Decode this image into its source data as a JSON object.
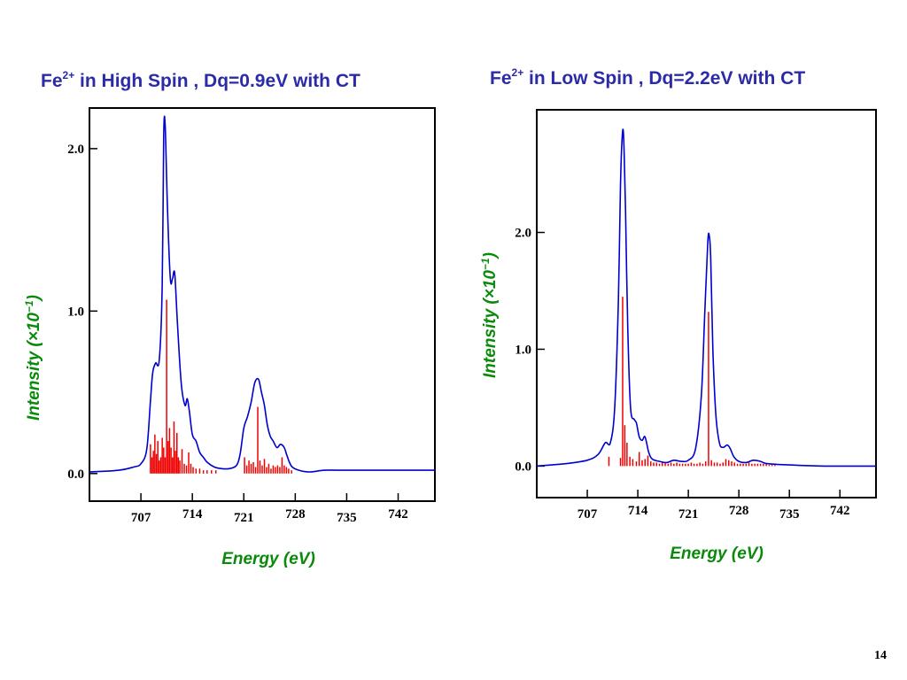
{
  "slide_number": "14",
  "colors": {
    "title": "#2b2ba8",
    "axis_label": "#0a8a0a",
    "envelope": "#0000d0",
    "sticks": "#ee0000",
    "frame": "#000000"
  },
  "chart_data": [
    {
      "type": "line",
      "title_prefix": "Fe",
      "title_sup": "2+",
      "title_suffix": " in High Spin , Dq=0.9eV with CT",
      "xlabel": "Energy  (eV)",
      "ylabel_main": "Intensity  (",
      "ylabel_unit": "×10",
      "ylabel_exp": "−1",
      "ylabel_close": ")",
      "x_ticks": [
        707,
        714,
        721,
        728,
        735,
        742
      ],
      "x_tick_labels": [
        "707",
        "714",
        "721",
        "728",
        "735",
        "742"
      ],
      "y_ticks": [
        0.0,
        1.0,
        2.0
      ],
      "y_tick_labels": [
        "0.0",
        "1.0",
        "2.0"
      ],
      "xlim": [
        700,
        747
      ],
      "ylim": [
        -0.17,
        2.25
      ],
      "grid": false,
      "series": [
        {
          "kind": "envelope",
          "x": [
            700,
            704,
            706,
            707,
            707.8,
            708.3,
            708.6,
            709,
            709.5,
            709.9,
            710.1,
            710.3,
            710.6,
            711,
            711.3,
            711.6,
            712,
            712.5,
            713,
            713.3,
            713.6,
            714,
            714.5,
            715,
            715.5,
            716,
            717,
            718,
            719,
            720,
            720.5,
            721,
            721.5,
            722,
            722.5,
            723,
            723.4,
            723.8,
            724.2,
            724.6,
            725,
            725.5,
            726,
            726.5,
            726.8,
            727.2,
            727.6,
            728.5,
            730,
            732,
            735,
            740,
            747
          ],
          "y": [
            0.01,
            0.02,
            0.04,
            0.06,
            0.15,
            0.45,
            0.62,
            0.68,
            0.7,
            1.15,
            2.08,
            2.14,
            1.65,
            1.2,
            1.2,
            1.23,
            0.9,
            0.55,
            0.42,
            0.46,
            0.38,
            0.24,
            0.2,
            0.13,
            0.1,
            0.07,
            0.04,
            0.03,
            0.03,
            0.05,
            0.12,
            0.28,
            0.35,
            0.44,
            0.56,
            0.58,
            0.5,
            0.42,
            0.3,
            0.23,
            0.2,
            0.16,
            0.18,
            0.16,
            0.12,
            0.07,
            0.04,
            0.02,
            0.01,
            0.02,
            0.02,
            0.02,
            0.02
          ]
        },
        {
          "kind": "sticks",
          "x": [
            708.3,
            708.5,
            708.7,
            708.9,
            709.1,
            709.3,
            709.5,
            709.7,
            709.9,
            710.1,
            710.3,
            710.5,
            710.7,
            710.9,
            711.1,
            711.3,
            711.5,
            711.7,
            711.9,
            712.1,
            712.3,
            712.6,
            712.9,
            713.2,
            713.5,
            713.8,
            714.1,
            714.5,
            715,
            715.5,
            716,
            716.6,
            717.2,
            721.1,
            721.4,
            721.7,
            722,
            722.3,
            722.6,
            722.9,
            723.2,
            723.5,
            723.8,
            724.1,
            724.4,
            724.7,
            725,
            725.3,
            725.6,
            725.9,
            726.2,
            726.5,
            726.8,
            727.1,
            727.5
          ],
          "y": [
            0.18,
            0.1,
            0.14,
            0.24,
            0.12,
            0.2,
            0.08,
            0.1,
            0.22,
            0.16,
            0.1,
            1.07,
            0.2,
            0.28,
            0.16,
            0.1,
            0.32,
            0.14,
            0.25,
            0.1,
            0.08,
            0.15,
            0.06,
            0.05,
            0.13,
            0.06,
            0.04,
            0.03,
            0.03,
            0.02,
            0.02,
            0.02,
            0.02,
            0.1,
            0.05,
            0.08,
            0.06,
            0.07,
            0.04,
            0.41,
            0.08,
            0.05,
            0.09,
            0.04,
            0.06,
            0.03,
            0.05,
            0.04,
            0.05,
            0.04,
            0.1,
            0.05,
            0.04,
            0.03,
            0.02
          ]
        }
      ]
    },
    {
      "type": "line",
      "title_prefix": "Fe",
      "title_sup": "2+",
      "title_suffix": " in Low Spin , Dq=2.2eV with CT",
      "xlabel": "Energy  (eV)",
      "ylabel_main": "Intensity  (",
      "ylabel_unit": "×10",
      "ylabel_exp": "−1",
      "ylabel_close": ")",
      "x_ticks": [
        707,
        714,
        721,
        728,
        735,
        742
      ],
      "x_tick_labels": [
        "707",
        "714",
        "721",
        "728",
        "735",
        "742"
      ],
      "y_ticks": [
        0.0,
        1.0,
        2.0
      ],
      "y_tick_labels": [
        "0.0",
        "1.0",
        "2.0"
      ],
      "xlim": [
        700,
        747
      ],
      "ylim": [
        -0.27,
        3.05
      ],
      "grid": false,
      "series": [
        {
          "kind": "envelope",
          "x": [
            700,
            704,
            707,
            708.5,
            709.5,
            710.2,
            710.8,
            711.3,
            711.6,
            711.9,
            712.1,
            712.3,
            712.6,
            713,
            713.5,
            713.8,
            714.2,
            714.6,
            715,
            715.5,
            716,
            717,
            718,
            719,
            720,
            721,
            722,
            722.8,
            723.3,
            723.7,
            723.9,
            724.1,
            724.4,
            724.8,
            725.3,
            725.8,
            726.4,
            726.8,
            727.3,
            728,
            729,
            730,
            731,
            732,
            735,
            740,
            747
          ],
          "y": [
            0.0,
            0.02,
            0.05,
            0.1,
            0.2,
            0.2,
            0.5,
            1.4,
            2.4,
            2.87,
            2.7,
            2.2,
            1.2,
            0.5,
            0.4,
            0.37,
            0.25,
            0.22,
            0.25,
            0.12,
            0.06,
            0.04,
            0.03,
            0.05,
            0.04,
            0.05,
            0.15,
            0.6,
            1.35,
            1.92,
            1.97,
            1.78,
            1.0,
            0.45,
            0.2,
            0.16,
            0.18,
            0.15,
            0.08,
            0.04,
            0.03,
            0.05,
            0.04,
            0.02,
            0.01,
            0.0,
            0.0
          ]
        },
        {
          "kind": "sticks",
          "x": [
            710,
            711.6,
            711.9,
            712.2,
            712.5,
            712.9,
            713.3,
            713.8,
            714.2,
            714.6,
            715,
            715.4,
            715.8,
            716.2,
            716.6,
            717,
            717.4,
            717.8,
            718.2,
            718.6,
            719,
            719.4,
            719.8,
            720.2,
            720.6,
            721,
            721.4,
            721.8,
            722.2,
            722.6,
            723,
            723.4,
            723.8,
            724.2,
            724.6,
            725,
            725.4,
            725.8,
            726.2,
            726.6,
            727,
            727.4,
            727.8,
            728.2,
            728.6,
            729,
            729.4,
            729.8,
            730.2,
            730.6,
            731,
            731.4,
            731.8,
            732.2,
            732.6,
            733
          ],
          "y": [
            0.08,
            0.07,
            1.45,
            0.35,
            0.2,
            0.08,
            0.06,
            0.04,
            0.12,
            0.05,
            0.06,
            0.09,
            0.04,
            0.03,
            0.03,
            0.02,
            0.03,
            0.03,
            0.02,
            0.03,
            0.02,
            0.03,
            0.02,
            0.02,
            0.02,
            0.02,
            0.03,
            0.02,
            0.02,
            0.03,
            0.02,
            0.04,
            1.32,
            0.05,
            0.03,
            0.03,
            0.02,
            0.03,
            0.06,
            0.05,
            0.04,
            0.03,
            0.02,
            0.02,
            0.02,
            0.02,
            0.03,
            0.02,
            0.02,
            0.02,
            0.02,
            0.02,
            0.02,
            0.01,
            0.01,
            0.01
          ]
        }
      ]
    }
  ]
}
